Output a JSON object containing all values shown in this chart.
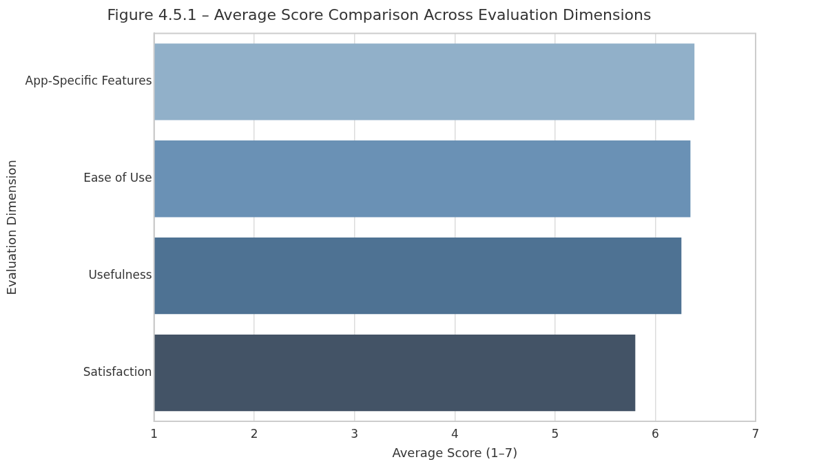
{
  "chart_data": {
    "type": "bar",
    "orientation": "horizontal",
    "title": "Figure 4.5.1 – Average Score Comparison Across Evaluation Dimensions",
    "xlabel": "Average Score (1–7)",
    "ylabel": "Evaluation Dimension",
    "categories": [
      "App-Specific Features",
      "Ease of Use",
      "Usefulness",
      "Satisfaction"
    ],
    "values": [
      6.39,
      6.35,
      6.26,
      5.8
    ],
    "colors": [
      "#91b0c9",
      "#6a91b5",
      "#4e7293",
      "#435366"
    ],
    "xlim": [
      1,
      7
    ],
    "xticks": [
      1,
      2,
      3,
      4,
      5,
      6,
      7
    ],
    "grid": "x"
  }
}
